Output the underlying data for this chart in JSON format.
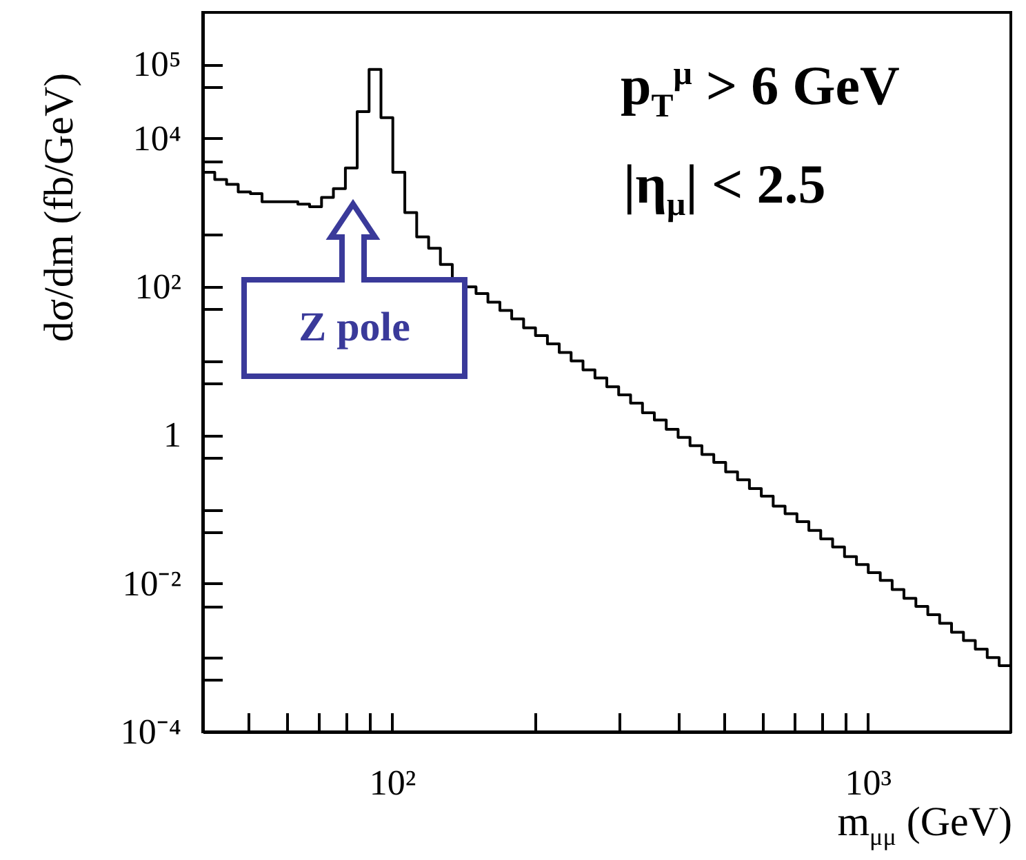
{
  "chart_data": {
    "type": "histogram",
    "xlabel": "m$_{μμ}$ (GeV)",
    "ylabel": "dσ/dm (fb/GeV)",
    "annotations": [
      "p$_{T}$$^{μ}$ > 6 GeV",
      "|η$_{μ}$| < 2.5",
      "Z pole"
    ],
    "log": "xy",
    "color": "#000000",
    "xlim": [
      40,
      2000
    ],
    "ylim": [
      0.0001,
      500000
    ],
    "xticks": [
      {
        "value": 50,
        "label": null
      },
      {
        "value": 60,
        "label": null
      },
      {
        "value": 70,
        "label": null
      },
      {
        "value": 80,
        "label": null
      },
      {
        "value": 90,
        "label": null
      },
      {
        "value": 100,
        "label": "10²"
      },
      {
        "value": 200,
        "label": null
      },
      {
        "value": 300,
        "label": null
      },
      {
        "value": 400,
        "label": null
      },
      {
        "value": 500,
        "label": null
      },
      {
        "value": 600,
        "label": null
      },
      {
        "value": 700,
        "label": null
      },
      {
        "value": 800,
        "label": null
      },
      {
        "value": 900,
        "label": null
      },
      {
        "value": 1000,
        "label": "10³"
      }
    ],
    "yticks": [
      {
        "value": 0.0001,
        "label": "10⁻⁴"
      },
      {
        "value": 0.0005,
        "label": null
      },
      {
        "value": 0.001,
        "label": null
      },
      {
        "value": 0.005,
        "label": null
      },
      {
        "value": 0.01,
        "label": "10⁻²"
      },
      {
        "value": 0.05,
        "label": null
      },
      {
        "value": 0.1,
        "label": null
      },
      {
        "value": 0.5,
        "label": null
      },
      1,
      {
        "value": 5,
        "label": null
      },
      {
        "value": 10,
        "label": null
      },
      {
        "value": 50,
        "label": null
      },
      {
        "value": 100,
        "label": "10²"
      },
      {
        "value": 500,
        "label": null
      },
      {
        "value": 5000,
        "label": null
      },
      {
        "value": 10000,
        "label": "10⁴"
      },
      {
        "value": 50000,
        "label": null
      },
      {
        "value": 100000,
        "label": "10⁵"
      }
    ],
    "bins": [
      40.0,
      42.4,
      44.9,
      47.5,
      50.4,
      53.3,
      56.5,
      59.8,
      63.4,
      67.1,
      71.1,
      75.3,
      79.8,
      84.5,
      89.5,
      94.8,
      100.4,
      106.4,
      112.7,
      119.4,
      126.4,
      133.9,
      141.8,
      150.2,
      159.1,
      168.6,
      178.5,
      189.1,
      200.3,
      212.2,
      224.7,
      238.0,
      252.1,
      267.1,
      282.9,
      299.6,
      317.4,
      336.2,
      356.1,
      377.2,
      399.5,
      423.2,
      448.3,
      474.8,
      502.9,
      532.7,
      564.2,
      597.6,
      633.0,
      670.5,
      710.2,
      752.3,
      796.8,
      844.0,
      894.0,
      947.3,
      1003,
      1063,
      1126,
      1192,
      1263,
      1338,
      1417,
      1501,
      1590,
      1684,
      1784,
      1890,
      2000
    ],
    "values": [
      3500,
      2800,
      2400,
      1900,
      1800,
      1400,
      1400,
      1400,
      1300,
      1200,
      1600,
      2100,
      4000,
      23000,
      85000,
      19000,
      3500,
      1000,
      470,
      330,
      200,
      130,
      100,
      81,
      62,
      48,
      37,
      28,
      22,
      17,
      13,
      10,
      7.6,
      5.9,
      4.5,
      3.5,
      2.7,
      2.0,
      1.6,
      1.2,
      0.93,
      0.72,
      0.55,
      0.43,
      0.32,
      0.25,
      0.19,
      0.15,
      0.11,
      0.087,
      0.068,
      0.052,
      0.04,
      0.031,
      0.023,
      0.018,
      0.014,
      0.011,
      0.0083,
      0.0063,
      0.0049,
      0.0038,
      0.0029,
      0.0022,
      0.0017,
      0.0013,
      0.001,
      0.00078
    ]
  }
}
